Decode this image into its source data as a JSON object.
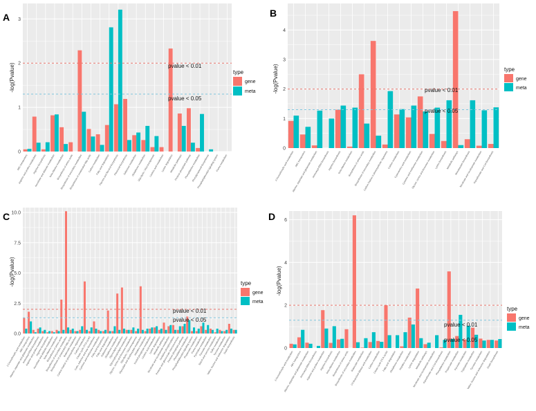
{
  "legend": {
    "title": "type",
    "gene_label": "gene",
    "meta_label": "meta"
  },
  "colors": {
    "gene": "#F8766D",
    "meta": "#00BFC4",
    "panel_bg": "#EBEBEB",
    "grid": "#FFFFFF",
    "line01": "#E8736B",
    "line05": "#7FC6DE"
  },
  "ylabel": "-log(Pvalue)",
  "threshold_labels": {
    "p01": "pvalue < 0.01",
    "p05": "pvalue < 0.05"
  },
  "thresholds": {
    "p01": 2.0,
    "p05": 1.3
  },
  "chart_data": [
    {
      "panel": "A",
      "type": "bar",
      "ylim": [
        0,
        3.35
      ],
      "yticks": [
        0,
        1,
        2,
        3
      ],
      "categories": [
        "ABC transporters",
        "Arginine and proline metabolism",
        "Arginine biosynthesis",
        "Ascorbate and aldarate metabolism",
        "beta-Alanine metabolism",
        "Biosynthesis of amino acids",
        "Biosynthesis of secondary metabolites",
        "Biosynthesis of unsaturated fatty acids",
        "Carbon metabolism",
        "Fatty acid degradation",
        "Flavone and flavonol biosynthesis",
        "Flavonoid biosynthesis",
        "Galactose metabolism",
        "Glutathione metabolism",
        "Glycolysis / Gluconeogenesis",
        "Linoleic acid metabolism",
        "Lysine degradation",
        "Metabolic pathways",
        "Pentose phosphate pathway",
        "Phenylalanine metabolism",
        "Phenylpropanoid biosynthesis",
        "Phosphatidylinositol signaling system",
        "Purine metabolism"
      ],
      "series": [
        {
          "name": "gene",
          "values": [
            0.05,
            0.79,
            0.05,
            0.82,
            0.55,
            0.21,
            2.29,
            0.51,
            0.39,
            0.6,
            1.07,
            1.19,
            0.37,
            0.26,
            0.1,
            0.1,
            2.33,
            0.86,
            0.98,
            0.08,
            0.0,
            0.0,
            0.0
          ]
        },
        {
          "name": "meta",
          "values": [
            0.06,
            0.2,
            0.21,
            0.84,
            0.17,
            0.0,
            0.9,
            0.34,
            0.15,
            2.81,
            3.21,
            0.26,
            0.43,
            0.58,
            0.35,
            0.0,
            0.0,
            0.58,
            0.2,
            0.85,
            0.05,
            0.0,
            0.0
          ]
        }
      ]
    },
    {
      "panel": "B",
      "type": "bar",
      "ylim": [
        0,
        4.9
      ],
      "yticks": [
        0,
        1,
        2,
        3,
        4
      ],
      "categories": [
        "2-Oxocarboxylic acid metabolism",
        "ABC transporters",
        "Alanine, aspartate and glutamate metabolism",
        "Aminoacyl-tRNA biosynthesis",
        "Arginine biosynthesis",
        "beta-Alanine metabolism",
        "Biosynthesis of amino acids",
        "Biosynthesis of secondary metabolites",
        "Carbon fixation in photosynthetic organisms",
        "Carbon metabolism",
        "Cyanoamino acid metabolism",
        "Cysteine and methionine metabolism",
        "Glycine, serine and threonine metabolism",
        "Lysine biosynthesis",
        "Metabolic pathways",
        "Monobactam biosynthesis",
        "Nicotinate and nicotinamide metabolism",
        "Pantothenate and CoA biosynthesis"
      ],
      "series": [
        {
          "name": "gene",
          "values": [
            0.92,
            0.46,
            0.09,
            0.0,
            1.3,
            0.05,
            2.5,
            3.63,
            0.12,
            1.14,
            1.04,
            1.75,
            0.48,
            0.24,
            4.64,
            0.3,
            0.08,
            0.14
          ]
        },
        {
          "name": "meta",
          "values": [
            1.1,
            0.72,
            1.27,
            1.0,
            1.44,
            1.37,
            0.83,
            0.42,
            1.93,
            1.32,
            1.44,
            1.24,
            1.37,
            1.62,
            0.1,
            1.62,
            1.28,
            1.38
          ]
        }
      ]
    },
    {
      "panel": "C",
      "type": "bar",
      "ylim": [
        0,
        10.4
      ],
      "yticks": [
        0,
        2.5,
        5.0,
        7.5,
        10.0
      ],
      "ytick_labels": [
        "0.0",
        "2.5",
        "5.0",
        "7.5",
        "10.0"
      ],
      "categories": [
        "2-Oxocarboxylic acid metabolism",
        "ABC transporters",
        "Alanine, aspartate and glutamate metabolism",
        "Aminoacyl-tRNA biosynthesis",
        "Arginine and proline metabolism",
        "Arginine biosynthesis",
        "Ascorbate and aldarate metabolism",
        "beta-Alanine metabolism",
        "Biosynthesis of amino acids",
        "Biosynthesis of secondary metabolites",
        "Biosynthesis of unsaturated fatty acids",
        "Butanoate metabolism",
        "Carbon fixation in photosynthetic organisms",
        "Carbon metabolism",
        "Citrate cycle (TCA cycle)",
        "Cutin, suberine and wax biosynthesis",
        "Cysteine and methionine metabolism",
        "Fatty acid biosynthesis",
        "Fatty acid degradation",
        "Galactose metabolism",
        "Glutathione metabolism",
        "Glycerolipid metabolism",
        "Glycerophospholipid metabolism",
        "Glycine, serine and threonine metabolism",
        "Glycolysis / Gluconeogenesis",
        "Glyoxylate and dicarboxylate metabolism",
        "Histidine metabolism",
        "Inositol phosphate metabolism",
        "Linoleic acid metabolism",
        "Lysine degradation",
        "Metabolic pathways",
        "Nicotinate and nicotinamide metabolism",
        "Oxidative phosphorylation",
        "Pentose and glucuronate interconversions",
        "Pentose phosphate pathway",
        "Phenylalanine metabolism",
        "Phosphatidylinositol signaling system",
        "Propanoate metabolism",
        "Purine metabolism",
        "Pyrimidine metabolism",
        "Pyruvate metabolism",
        "Starch and sucrose metabolism",
        "Sulfur metabolism",
        "Tyrosine metabolism",
        "Valine, leucine and isoleucine degradation",
        "Zeatin biosynthesis"
      ],
      "series": [
        {
          "name": "gene",
          "values": [
            1.3,
            1.8,
            0.3,
            0.4,
            0.2,
            0.1,
            0.2,
            0.3,
            2.8,
            10.1,
            0.3,
            0.2,
            0.3,
            4.3,
            0.2,
            1.0,
            0.3,
            0.2,
            1.9,
            0.2,
            3.3,
            3.8,
            0.3,
            0.3,
            0.2,
            3.9,
            0.2,
            0.4,
            0.5,
            0.3,
            0.9,
            0.6,
            0.7,
            0.3,
            0.6,
            1.4,
            0.2,
            0.2,
            0.6,
            0.3,
            0.4,
            0.1,
            0.3,
            0.2,
            0.8,
            0.3
          ]
        },
        {
          "name": "meta",
          "values": [
            0.4,
            1.0,
            0.1,
            0.5,
            0.3,
            0.2,
            0.1,
            0.2,
            0.3,
            0.5,
            0.4,
            0.2,
            0.6,
            0.3,
            0.5,
            0.4,
            0.2,
            0.3,
            0.2,
            0.6,
            0.3,
            0.4,
            0.3,
            0.5,
            0.4,
            0.3,
            0.4,
            0.5,
            0.6,
            0.4,
            0.3,
            0.7,
            0.3,
            0.6,
            0.8,
            1.1,
            0.5,
            0.4,
            0.9,
            0.7,
            0.3,
            0.4,
            0.2,
            0.3,
            0.4,
            0.3
          ]
        }
      ]
    },
    {
      "panel": "D",
      "type": "bar",
      "ylim": [
        0,
        6.4
      ],
      "yticks": [
        0,
        2,
        4,
        6
      ],
      "categories": [
        "2-Oxocarboxylic acid metabolism",
        "ABC transporters",
        "Alanine, aspartate and glutamate metabolism",
        "Aminoacyl-tRNA biosynthesis",
        "Arginine and proline metabolism",
        "Arginine biosynthesis",
        "beta-Alanine metabolism",
        "Biosynthesis of amino acids",
        "Biosynthesis of secondary metabolites",
        "Butanoate metabolism",
        "C5-Branched dibasic acid metabolism",
        "Carbon metabolism",
        "Citrate cycle (TCA cycle)",
        "Fatty acid degradation",
        "Glutathione metabolism",
        "Histidine metabolism",
        "Lysine degradation",
        "Metabolic pathways",
        "Nicotinate and nicotinamide metabolism",
        "Pantothenate and CoA biosynthesis",
        "Phenylalanine metabolism",
        "Propanoate metabolism",
        "Pyruvate metabolism",
        "Tryptophan metabolism",
        "Tyrosine metabolism",
        "Valine, leucine and isoleucine degradation",
        "Zeatin biosynthesis"
      ],
      "series": [
        {
          "name": "gene",
          "values": [
            0.2,
            0.5,
            0.25,
            0.0,
            1.77,
            0.24,
            0.4,
            0.88,
            6.2,
            0.02,
            0.28,
            0.33,
            2.0,
            0.0,
            0.08,
            1.42,
            2.78,
            0.18,
            0.0,
            0.03,
            3.58,
            0.56,
            0.4,
            0.95,
            0.44,
            0.38,
            0.35
          ]
        },
        {
          "name": "meta",
          "values": [
            0.17,
            0.85,
            0.2,
            0.1,
            0.91,
            1.02,
            0.43,
            0.0,
            0.27,
            0.46,
            0.74,
            0.29,
            0.6,
            0.6,
            0.74,
            1.1,
            0.46,
            0.25,
            0.6,
            0.38,
            0.42,
            1.55,
            1.04,
            0.62,
            0.35,
            0.38,
            0.42
          ]
        }
      ]
    }
  ]
}
